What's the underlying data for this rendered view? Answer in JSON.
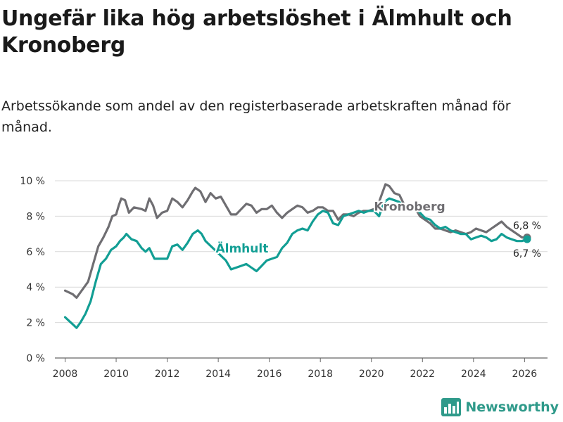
{
  "header": {
    "title": "Ungefär lika hög arbetslöshet i Älmhult och Kronoberg",
    "subtitle": "Arbetssökande som andel av den registerbaserade arbetskraften månad för månad."
  },
  "brand": {
    "name": "Newsworthy",
    "color": "#2f9a8a"
  },
  "chart_data": {
    "type": "line",
    "title": "Ungefär lika hög arbetslöshet i Älmhult och Kronoberg",
    "subtitle": "Arbetssökande som andel av den registerbaserade arbetskraften månad för månad.",
    "xlabel": "",
    "ylabel": "",
    "xlim": [
      2007.6,
      2026.9
    ],
    "ylim": [
      0,
      10
    ],
    "grid": true,
    "x_ticks": [
      2008,
      2010,
      2012,
      2014,
      2016,
      2018,
      2020,
      2022,
      2024,
      2026
    ],
    "x_tick_labels": [
      "2008",
      "2010",
      "2012",
      "2014",
      "2016",
      "2018",
      "2020",
      "2022",
      "2024",
      "2026"
    ],
    "y_ticks": [
      0,
      2,
      4,
      6,
      8,
      10
    ],
    "y_tick_labels": [
      "0 %",
      "2 %",
      "4 %",
      "6 %",
      "8 %",
      "10 %"
    ],
    "series": [
      {
        "name": "Kronoberg",
        "color": "#6f6e72",
        "end_label": "6,8 %",
        "points": [
          [
            2008.0,
            3.8
          ],
          [
            2008.3,
            3.6
          ],
          [
            2008.45,
            3.4
          ],
          [
            2008.7,
            3.9
          ],
          [
            2008.9,
            4.3
          ],
          [
            2009.1,
            5.3
          ],
          [
            2009.3,
            6.3
          ],
          [
            2009.5,
            6.8
          ],
          [
            2009.7,
            7.4
          ],
          [
            2009.85,
            8.0
          ],
          [
            2010.0,
            8.1
          ],
          [
            2010.1,
            8.6
          ],
          [
            2010.2,
            9.0
          ],
          [
            2010.35,
            8.9
          ],
          [
            2010.5,
            8.2
          ],
          [
            2010.7,
            8.5
          ],
          [
            2011.0,
            8.4
          ],
          [
            2011.15,
            8.3
          ],
          [
            2011.3,
            9.0
          ],
          [
            2011.45,
            8.6
          ],
          [
            2011.6,
            7.9
          ],
          [
            2011.8,
            8.2
          ],
          [
            2012.0,
            8.3
          ],
          [
            2012.2,
            9.0
          ],
          [
            2012.4,
            8.8
          ],
          [
            2012.6,
            8.5
          ],
          [
            2012.8,
            8.9
          ],
          [
            2013.0,
            9.4
          ],
          [
            2013.1,
            9.6
          ],
          [
            2013.3,
            9.4
          ],
          [
            2013.5,
            8.8
          ],
          [
            2013.7,
            9.3
          ],
          [
            2013.9,
            9.0
          ],
          [
            2014.1,
            9.1
          ],
          [
            2014.3,
            8.6
          ],
          [
            2014.5,
            8.1
          ],
          [
            2014.7,
            8.1
          ],
          [
            2014.9,
            8.4
          ],
          [
            2015.1,
            8.7
          ],
          [
            2015.3,
            8.6
          ],
          [
            2015.5,
            8.2
          ],
          [
            2015.7,
            8.4
          ],
          [
            2015.9,
            8.4
          ],
          [
            2016.1,
            8.6
          ],
          [
            2016.3,
            8.2
          ],
          [
            2016.5,
            7.9
          ],
          [
            2016.7,
            8.2
          ],
          [
            2016.9,
            8.4
          ],
          [
            2017.1,
            8.6
          ],
          [
            2017.3,
            8.5
          ],
          [
            2017.5,
            8.2
          ],
          [
            2017.7,
            8.3
          ],
          [
            2017.9,
            8.5
          ],
          [
            2018.1,
            8.5
          ],
          [
            2018.3,
            8.3
          ],
          [
            2018.5,
            8.3
          ],
          [
            2018.7,
            7.8
          ],
          [
            2018.9,
            8.1
          ],
          [
            2019.1,
            8.1
          ],
          [
            2019.3,
            8.0
          ],
          [
            2019.5,
            8.2
          ],
          [
            2019.7,
            8.3
          ],
          [
            2019.9,
            8.3
          ],
          [
            2020.1,
            8.4
          ],
          [
            2020.25,
            8.6
          ],
          [
            2020.4,
            9.2
          ],
          [
            2020.55,
            9.8
          ],
          [
            2020.7,
            9.7
          ],
          [
            2020.9,
            9.3
          ],
          [
            2021.1,
            9.2
          ],
          [
            2021.3,
            8.6
          ],
          [
            2021.5,
            8.3
          ],
          [
            2021.7,
            8.5
          ],
          [
            2021.9,
            8.0
          ],
          [
            2022.1,
            7.8
          ],
          [
            2022.3,
            7.6
          ],
          [
            2022.5,
            7.3
          ],
          [
            2022.7,
            7.3
          ],
          [
            2022.9,
            7.2
          ],
          [
            2023.1,
            7.1
          ],
          [
            2023.3,
            7.2
          ],
          [
            2023.5,
            7.1
          ],
          [
            2023.7,
            7.0
          ],
          [
            2023.9,
            7.1
          ],
          [
            2024.1,
            7.3
          ],
          [
            2024.3,
            7.2
          ],
          [
            2024.5,
            7.1
          ],
          [
            2024.7,
            7.3
          ],
          [
            2024.9,
            7.5
          ],
          [
            2025.1,
            7.7
          ],
          [
            2025.3,
            7.4
          ],
          [
            2025.5,
            7.2
          ],
          [
            2025.7,
            7.0
          ],
          [
            2025.9,
            6.8
          ],
          [
            2026.1,
            6.8
          ]
        ]
      },
      {
        "name": "Älmhult",
        "color": "#129e94",
        "end_label": "6,7 %",
        "points": [
          [
            2008.0,
            2.3
          ],
          [
            2008.15,
            2.1
          ],
          [
            2008.3,
            1.9
          ],
          [
            2008.45,
            1.7
          ],
          [
            2008.6,
            2.0
          ],
          [
            2008.8,
            2.5
          ],
          [
            2009.0,
            3.2
          ],
          [
            2009.2,
            4.3
          ],
          [
            2009.4,
            5.3
          ],
          [
            2009.6,
            5.6
          ],
          [
            2009.8,
            6.1
          ],
          [
            2010.0,
            6.3
          ],
          [
            2010.15,
            6.6
          ],
          [
            2010.3,
            6.8
          ],
          [
            2010.4,
            7.0
          ],
          [
            2010.6,
            6.7
          ],
          [
            2010.8,
            6.6
          ],
          [
            2011.0,
            6.2
          ],
          [
            2011.15,
            6.0
          ],
          [
            2011.3,
            6.2
          ],
          [
            2011.5,
            5.6
          ],
          [
            2011.7,
            5.6
          ],
          [
            2012.0,
            5.6
          ],
          [
            2012.2,
            6.3
          ],
          [
            2012.4,
            6.4
          ],
          [
            2012.6,
            6.1
          ],
          [
            2012.8,
            6.5
          ],
          [
            2013.0,
            7.0
          ],
          [
            2013.2,
            7.2
          ],
          [
            2013.35,
            7.0
          ],
          [
            2013.5,
            6.6
          ],
          [
            2014.3,
            5.5
          ],
          [
            2014.5,
            5.0
          ],
          [
            2014.7,
            5.1
          ],
          [
            2014.9,
            5.2
          ],
          [
            2015.1,
            5.3
          ],
          [
            2015.3,
            5.1
          ],
          [
            2015.5,
            4.9
          ],
          [
            2015.7,
            5.2
          ],
          [
            2015.9,
            5.5
          ],
          [
            2016.1,
            5.6
          ],
          [
            2016.3,
            5.7
          ],
          [
            2016.5,
            6.2
          ],
          [
            2016.7,
            6.5
          ],
          [
            2016.9,
            7.0
          ],
          [
            2017.1,
            7.2
          ],
          [
            2017.3,
            7.3
          ],
          [
            2017.5,
            7.2
          ],
          [
            2017.7,
            7.7
          ],
          [
            2017.9,
            8.1
          ],
          [
            2018.1,
            8.3
          ],
          [
            2018.3,
            8.2
          ],
          [
            2018.5,
            7.6
          ],
          [
            2018.7,
            7.5
          ],
          [
            2018.9,
            8.0
          ],
          [
            2019.1,
            8.1
          ],
          [
            2019.3,
            8.2
          ],
          [
            2019.5,
            8.3
          ],
          [
            2019.7,
            8.2
          ],
          [
            2019.9,
            8.3
          ],
          [
            2020.1,
            8.3
          ],
          [
            2020.3,
            8.0
          ],
          [
            2020.5,
            8.8
          ],
          [
            2020.7,
            9.0
          ],
          [
            2020.9,
            8.9
          ],
          [
            2021.1,
            8.8
          ],
          [
            2021.3,
            8.5
          ],
          [
            2021.5,
            8.4
          ],
          [
            2021.7,
            8.5
          ],
          [
            2021.9,
            8.2
          ],
          [
            2022.1,
            7.9
          ],
          [
            2022.3,
            7.8
          ],
          [
            2022.5,
            7.5
          ],
          [
            2022.7,
            7.3
          ],
          [
            2022.9,
            7.4
          ],
          [
            2023.1,
            7.2
          ],
          [
            2023.3,
            7.1
          ],
          [
            2023.5,
            7.0
          ],
          [
            2023.7,
            7.0
          ],
          [
            2023.9,
            6.7
          ],
          [
            2024.1,
            6.8
          ],
          [
            2024.3,
            6.9
          ],
          [
            2024.5,
            6.8
          ],
          [
            2024.7,
            6.6
          ],
          [
            2024.9,
            6.7
          ],
          [
            2025.1,
            7.0
          ],
          [
            2025.3,
            6.8
          ],
          [
            2025.5,
            6.7
          ],
          [
            2025.7,
            6.6
          ],
          [
            2025.9,
            6.6
          ],
          [
            2026.1,
            6.7
          ]
        ]
      }
    ],
    "annotations": [
      {
        "text": "Kronoberg",
        "series": "Kronoberg",
        "x": 2020.1,
        "y": 8.55
      },
      {
        "text": "Älmhult",
        "series": "Älmhult",
        "x": 2013.9,
        "y": 6.2
      }
    ]
  }
}
